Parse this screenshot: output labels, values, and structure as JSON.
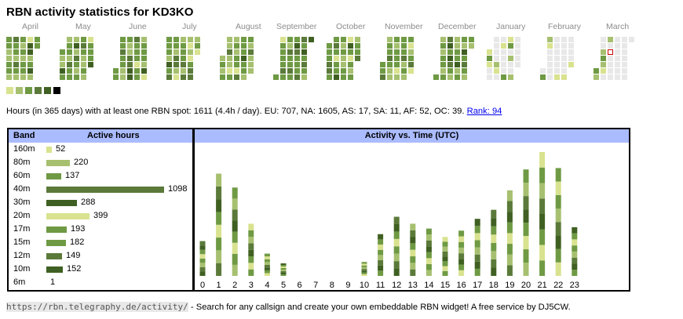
{
  "title": "RBN activity statistics for KD3KO",
  "months": [
    "April",
    "May",
    "June",
    "July",
    "August",
    "September",
    "October",
    "November",
    "December",
    "January",
    "February",
    "March"
  ],
  "colors": {
    "levels": [
      "#e8e8e8",
      "#d9e28f",
      "#a6c070",
      "#6f9a44",
      "#5b7a3a",
      "#3f6022"
    ],
    "legend": [
      "#d9e28f",
      "#a6c070",
      "#6f9a44",
      "#5b7a3a",
      "#3f6022",
      "#000000"
    ],
    "today_border": "#cc0000",
    "header": "#aabbff"
  },
  "summary": {
    "text": "Hours (in 365 days) with at least one RBN spot: 1611 (4.4h / day). EU: 707, NA: 1605, AS: 17, SA: 11, AF: 52, OC: 39.",
    "rank_label": "Rank: 94"
  },
  "bands": {
    "header_band": "Band",
    "header_hours": "Active hours",
    "rows": [
      {
        "band": "160m",
        "hours": 52,
        "color": "#d9e28f"
      },
      {
        "band": "80m",
        "hours": 220,
        "color": "#a6c070"
      },
      {
        "band": "60m",
        "hours": 137,
        "color": "#6f9a44"
      },
      {
        "band": "40m",
        "hours": 1098,
        "color": "#5b7a3a"
      },
      {
        "band": "30m",
        "hours": 288,
        "color": "#3f6022"
      },
      {
        "band": "20m",
        "hours": 399,
        "color": "#d9e28f"
      },
      {
        "band": "17m",
        "hours": 193,
        "color": "#6f9a44"
      },
      {
        "band": "15m",
        "hours": 182,
        "color": "#6f9a44"
      },
      {
        "band": "12m",
        "hours": 149,
        "color": "#5b7a3a"
      },
      {
        "band": "10m",
        "hours": 152,
        "color": "#3f6022"
      },
      {
        "band": "6m",
        "hours": 1,
        "color": "#d9e28f"
      }
    ]
  },
  "activity": {
    "header": "Activity vs. Time (UTC)",
    "hours": [
      "0",
      "1",
      "2",
      "3",
      "4",
      "5",
      "6",
      "7",
      "8",
      "9",
      "10",
      "11",
      "12",
      "13",
      "14",
      "15",
      "16",
      "17",
      "18",
      "19",
      "20",
      "21",
      "22",
      "23"
    ],
    "totals": [
      50,
      147,
      127,
      75,
      32,
      18,
      0,
      0,
      0,
      0,
      20,
      60,
      85,
      75,
      68,
      56,
      65,
      82,
      95,
      123,
      153,
      178,
      155,
      70
    ]
  },
  "chart_data": {
    "type": "bar",
    "title": "Activity vs. Time (UTC)",
    "categories": [
      "0",
      "1",
      "2",
      "3",
      "4",
      "5",
      "6",
      "7",
      "8",
      "9",
      "10",
      "11",
      "12",
      "13",
      "14",
      "15",
      "16",
      "17",
      "18",
      "19",
      "20",
      "21",
      "22",
      "23"
    ],
    "values": [
      50,
      147,
      127,
      75,
      32,
      18,
      0,
      0,
      0,
      0,
      20,
      60,
      85,
      75,
      68,
      56,
      65,
      82,
      95,
      123,
      153,
      178,
      155,
      70
    ],
    "xlabel": "",
    "ylabel": ""
  },
  "footer": {
    "url": "https://rbn.telegraphy.de/activity/",
    "text": " - Search for any callsign and create your own embeddable RBN widget! A free service by DJ5CW."
  }
}
